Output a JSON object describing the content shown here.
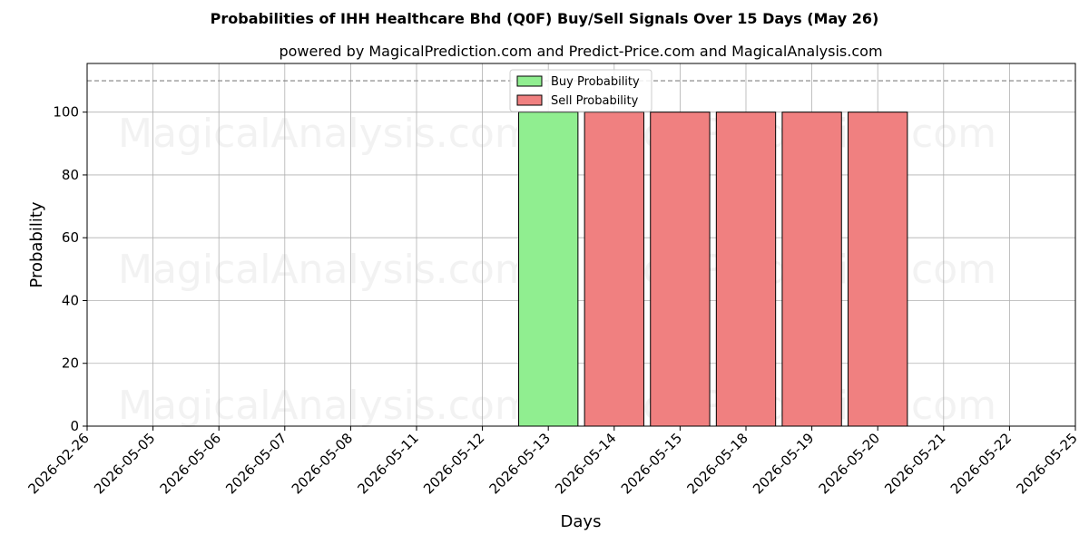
{
  "chart_data": {
    "type": "bar",
    "title": "Probabilities of IHH Healthcare Bhd (Q0F) Buy/Sell Signals Over 15 Days (May 26)",
    "subtitle": "powered by MagicalPrediction.com and Predict-Price.com and MagicalAnalysis.com",
    "xlabel": "Days",
    "ylabel": "Probability",
    "categories": [
      "2026-02-26",
      "2026-05-05",
      "2026-05-06",
      "2026-05-07",
      "2026-05-08",
      "2026-05-11",
      "2026-05-12",
      "2026-05-13",
      "2026-05-14",
      "2026-05-15",
      "2026-05-18",
      "2026-05-19",
      "2026-05-20",
      "2026-05-21",
      "2026-05-22",
      "2026-05-25"
    ],
    "series": [
      {
        "name": "Buy Probability",
        "color": "#90ee90",
        "values": [
          null,
          null,
          null,
          null,
          null,
          null,
          null,
          100,
          null,
          null,
          null,
          null,
          null,
          null,
          null,
          null
        ]
      },
      {
        "name": "Sell Probability",
        "color": "#f08080",
        "values": [
          null,
          null,
          null,
          null,
          null,
          null,
          null,
          null,
          100,
          100,
          100,
          100,
          100,
          null,
          null,
          null
        ]
      }
    ],
    "ylim": [
      0,
      115.5
    ],
    "yticks": [
      0,
      20,
      40,
      60,
      80,
      100
    ],
    "threshold_line": 110,
    "grid": true,
    "legend_position": "upper-center",
    "watermarks": [
      "MagicalAnalysis.com",
      "MagicalPrediction.com"
    ]
  }
}
